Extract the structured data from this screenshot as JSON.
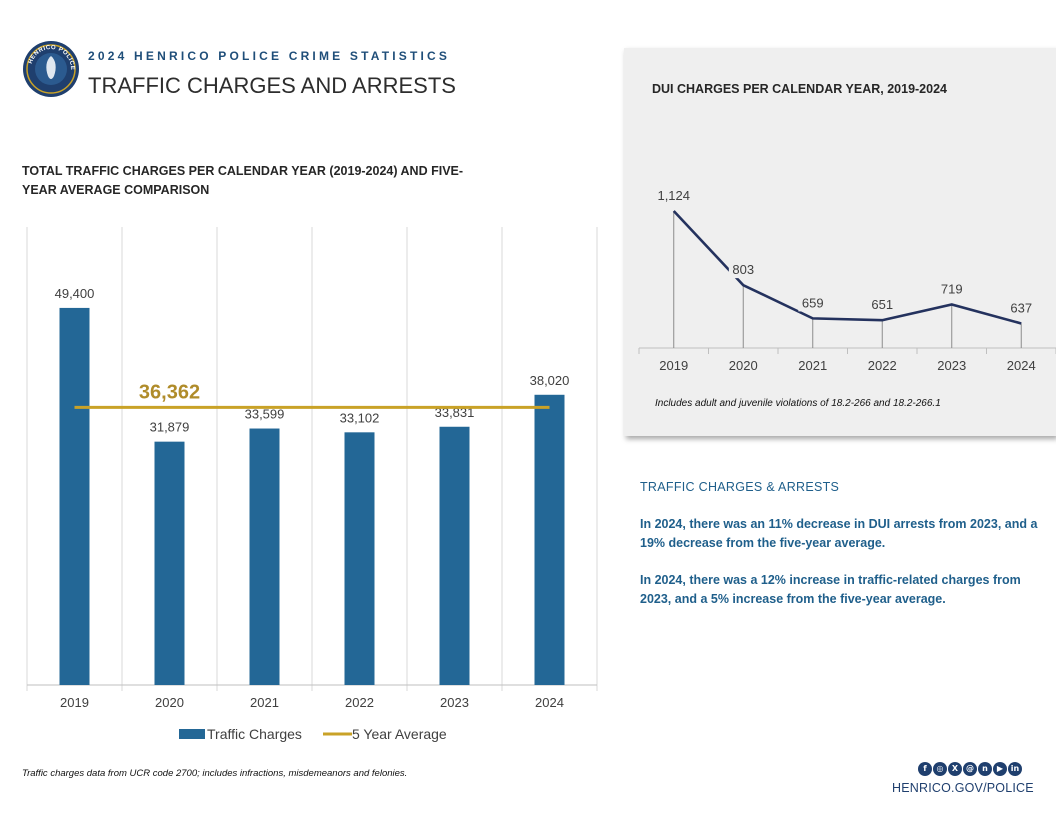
{
  "header": {
    "kicker": "2024 HENRICO POLICE CRIME STATISTICS",
    "title": "TRAFFIC CHARGES AND ARRESTS",
    "seal_text": "HENRICO POLICE"
  },
  "chart_data": [
    {
      "type": "bar",
      "title": "TOTAL TRAFFIC CHARGES PER CALENDAR YEAR (2019-2024) AND FIVE-YEAR AVERAGE COMPARISON",
      "categories": [
        "2019",
        "2020",
        "2021",
        "2022",
        "2023",
        "2024"
      ],
      "series": [
        {
          "name": "Traffic Charges",
          "values": [
            49400,
            31879,
            33599,
            33102,
            33831,
            38020
          ],
          "labels": [
            "49,400",
            "31,879",
            "33,599",
            "33,102",
            "33,831",
            "38,020"
          ],
          "color": "#236796"
        },
        {
          "name": "5 Year Average",
          "type": "line",
          "value": 36362,
          "label": "36,362",
          "color": "#c9a227"
        }
      ],
      "ylim": [
        0,
        60000
      ],
      "grid": "vertical",
      "legend": "bottom"
    },
    {
      "type": "line",
      "title": "DUI CHARGES PER CALENDAR YEAR, 2019-2024",
      "categories": [
        "2019",
        "2020",
        "2021",
        "2022",
        "2023",
        "2024"
      ],
      "series": [
        {
          "name": "DUI Charges",
          "values": [
            1124,
            803,
            659,
            651,
            719,
            637
          ],
          "labels": [
            "1,124",
            "803",
            "659",
            "651",
            "719",
            "637"
          ],
          "color": "#24325e"
        }
      ],
      "ylim": [
        600,
        1150
      ],
      "note": "Includes adult and juvenile violations of 18.2-266 and 18.2-266.1"
    }
  ],
  "footnote": "Traffic charges data from UCR code 2700; includes infractions, misdemeanors and felonies.",
  "summary": {
    "heading": "TRAFFIC CHARGES & ARRESTS",
    "p1": "In 2024, there was an 11% decrease in DUI arrests from 2023, and a 19% decrease from the five-year average.",
    "p2": "In 2024, there was a 12% increase in traffic-related charges from 2023, and a 5% increase from the five-year average."
  },
  "social_icons": [
    "facebook-icon",
    "instagram-icon",
    "x-icon",
    "threads-icon",
    "nextdoor-icon",
    "youtube-icon",
    "linkedin-icon"
  ],
  "social_glyphs": [
    "f",
    "◎",
    "X",
    "@",
    "n",
    "▶",
    "in"
  ],
  "website": "HENRICO.GOV/POLICE",
  "colors": {
    "brand_blue": "#1f5f8b",
    "bar_blue": "#236796",
    "avg_gold": "#c9a227",
    "dui_line": "#24325e"
  }
}
